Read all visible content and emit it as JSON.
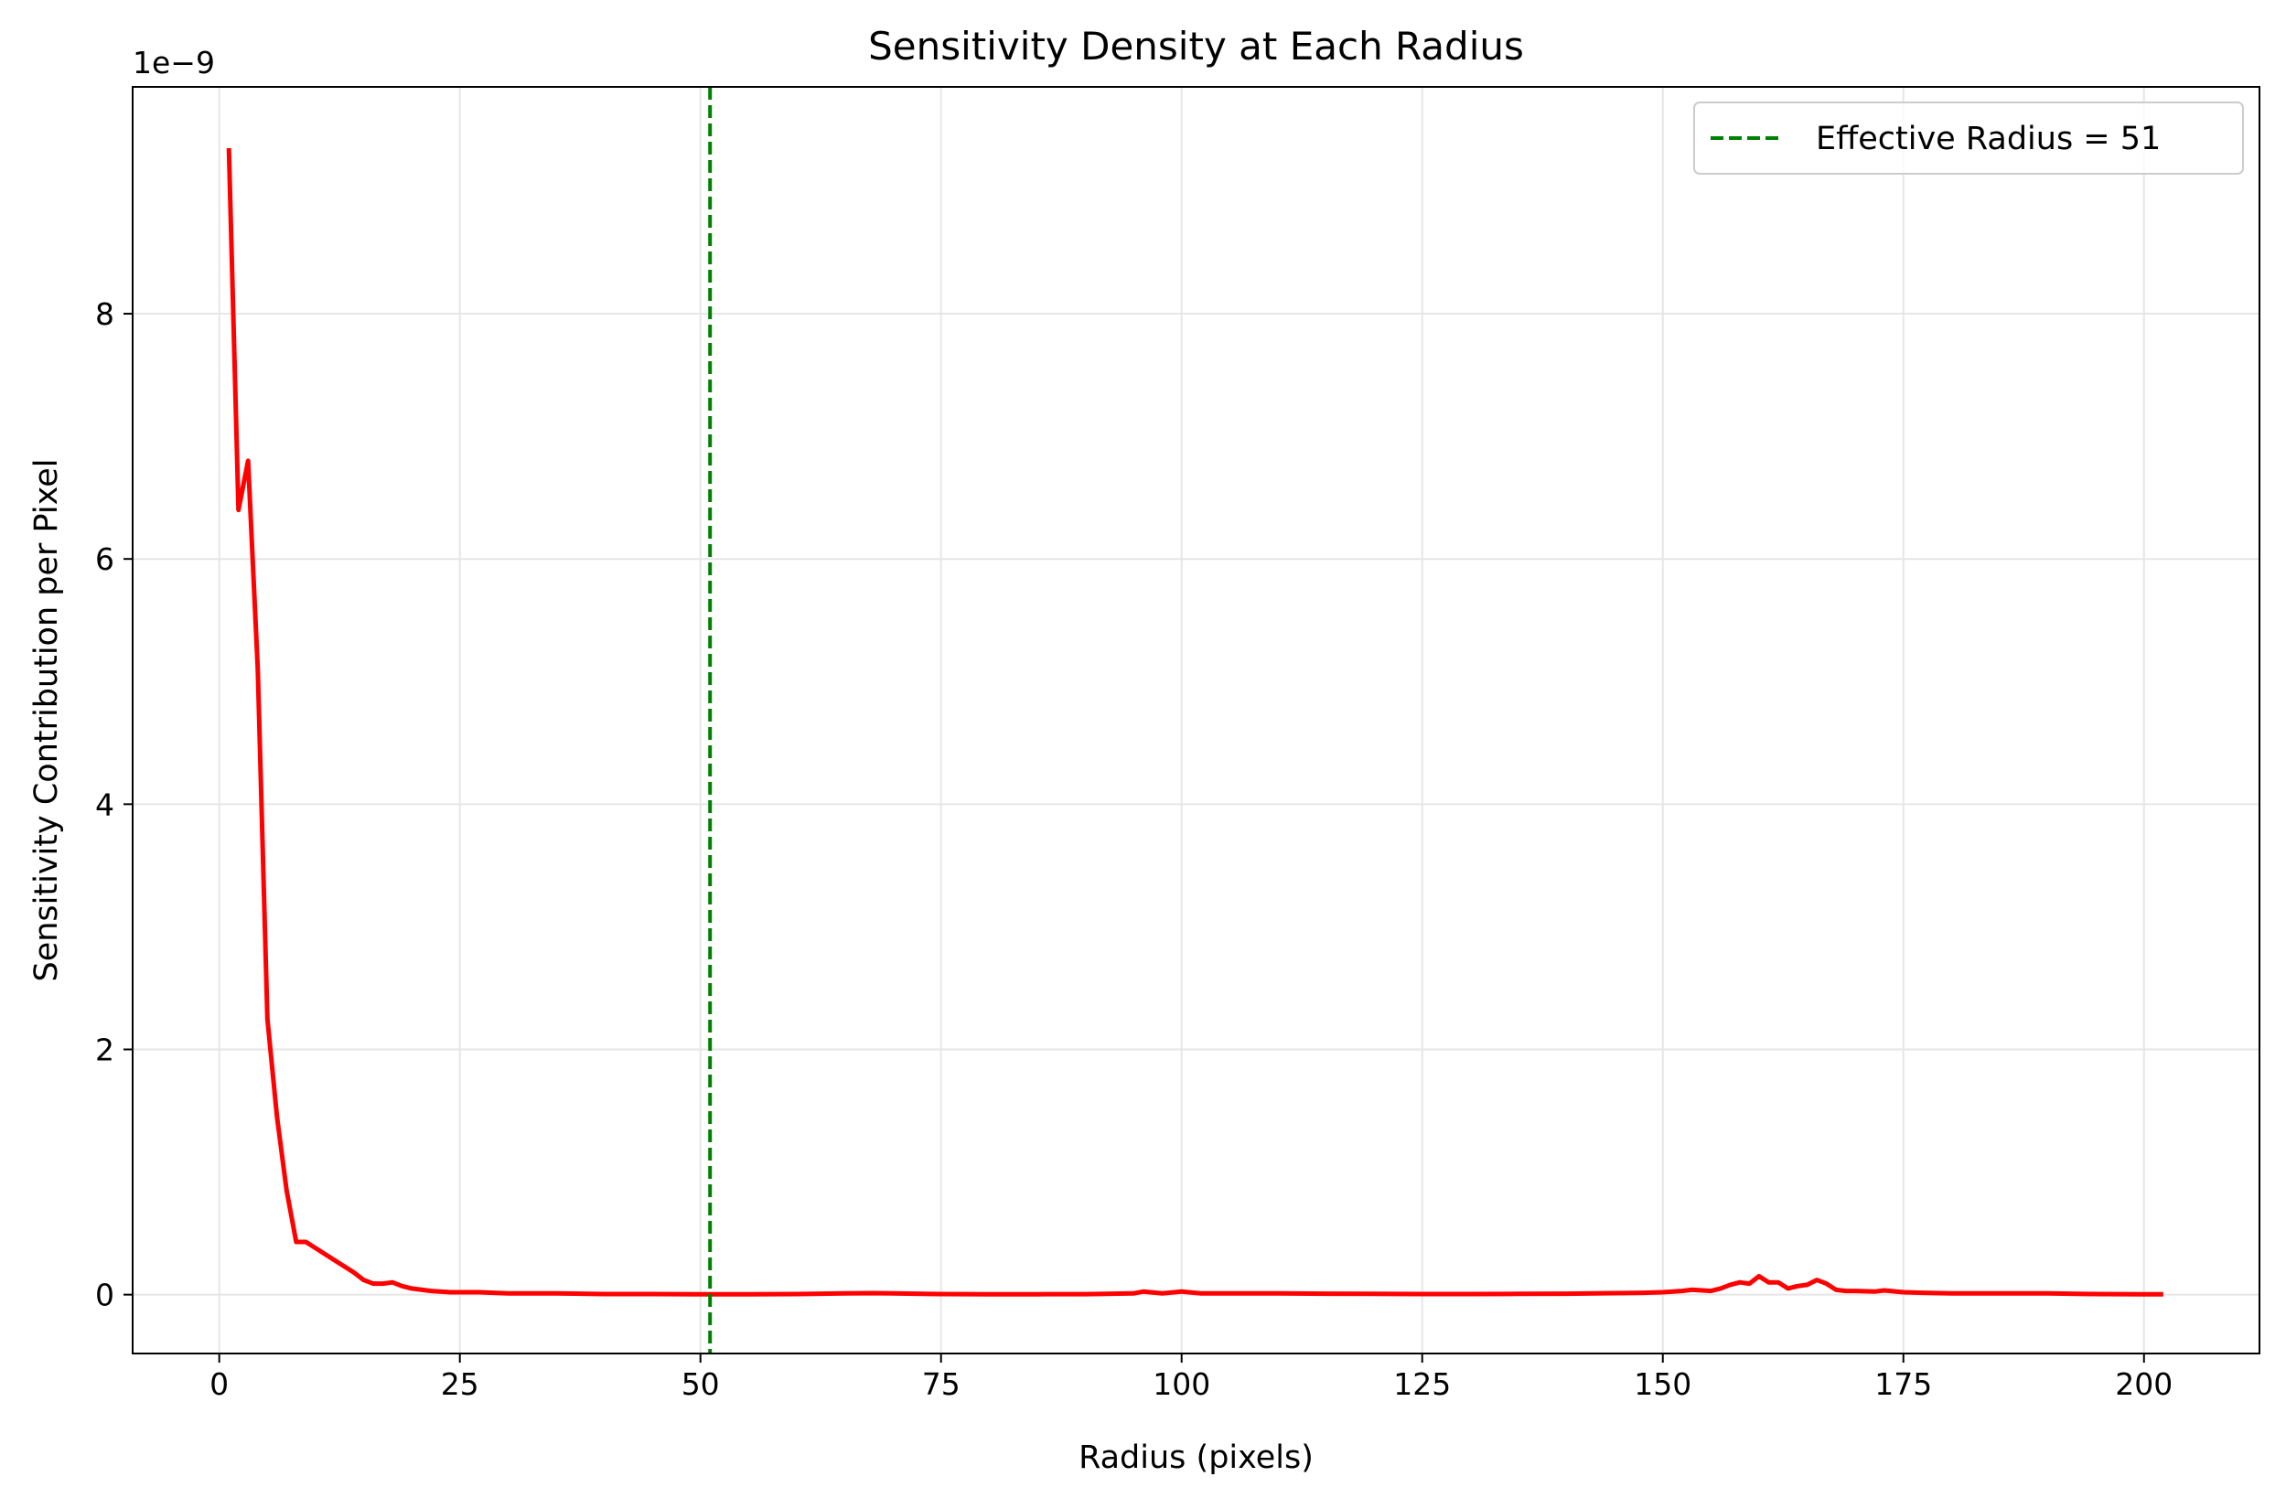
{
  "chart_data": {
    "type": "line",
    "title": "Sensitivity Density at Each Radius",
    "xlabel": "Radius (pixels)",
    "ylabel": "Sensitivity Contribution per Pixel",
    "y_offset_label": "1e−9",
    "xlim": [
      -9,
      212
    ],
    "ylim": [
      -0.48,
      9.85
    ],
    "x_ticks": [
      0,
      25,
      50,
      75,
      100,
      125,
      150,
      175,
      200
    ],
    "x_tick_labels": [
      "0",
      "25",
      "50",
      "75",
      "100",
      "125",
      "150",
      "175",
      "200"
    ],
    "y_ticks": [
      0,
      2,
      4,
      6,
      8
    ],
    "y_tick_labels": [
      "0",
      "2",
      "4",
      "6",
      "8"
    ],
    "grid": true,
    "legend_position": "top-right",
    "series": [
      {
        "color": "#ff0000",
        "x": [
          1,
          2,
          3,
          4,
          5,
          6,
          7,
          8,
          9,
          10,
          12,
          14,
          15,
          16,
          17,
          18,
          19,
          20,
          22,
          24,
          25,
          27,
          30,
          35,
          40,
          45,
          50,
          55,
          60,
          65,
          68,
          70,
          75,
          80,
          85,
          90,
          95,
          96,
          98,
          100,
          102,
          105,
          110,
          115,
          120,
          125,
          130,
          135,
          140,
          145,
          148,
          150,
          152,
          153,
          155,
          156,
          157,
          158,
          159,
          160,
          161,
          162,
          163,
          164,
          165,
          166,
          167,
          168,
          169,
          170,
          172,
          173,
          175,
          177,
          180,
          185,
          190,
          195,
          200,
          202
        ],
        "values": [
          9.35,
          6.4,
          6.8,
          5.1,
          2.25,
          1.45,
          0.85,
          0.43,
          0.43,
          0.38,
          0.28,
          0.18,
          0.12,
          0.09,
          0.09,
          0.1,
          0.07,
          0.05,
          0.03,
          0.02,
          0.02,
          0.02,
          0.01,
          0.01,
          0.005,
          0.005,
          0.003,
          0.003,
          0.005,
          0.01,
          0.012,
          0.01,
          0.005,
          0.003,
          0.003,
          0.004,
          0.01,
          0.025,
          0.01,
          0.025,
          0.01,
          0.01,
          0.01,
          0.008,
          0.006,
          0.005,
          0.005,
          0.006,
          0.008,
          0.012,
          0.015,
          0.02,
          0.03,
          0.04,
          0.03,
          0.05,
          0.08,
          0.1,
          0.09,
          0.15,
          0.1,
          0.1,
          0.05,
          0.07,
          0.08,
          0.12,
          0.09,
          0.04,
          0.03,
          0.03,
          0.025,
          0.035,
          0.02,
          0.015,
          0.01,
          0.01,
          0.01,
          0.005,
          0.003,
          0.003
        ]
      },
      {
        "name": "Effective Radius = 51",
        "type": "vline",
        "x": 51,
        "color": "#008000",
        "dashed": true
      }
    ]
  }
}
